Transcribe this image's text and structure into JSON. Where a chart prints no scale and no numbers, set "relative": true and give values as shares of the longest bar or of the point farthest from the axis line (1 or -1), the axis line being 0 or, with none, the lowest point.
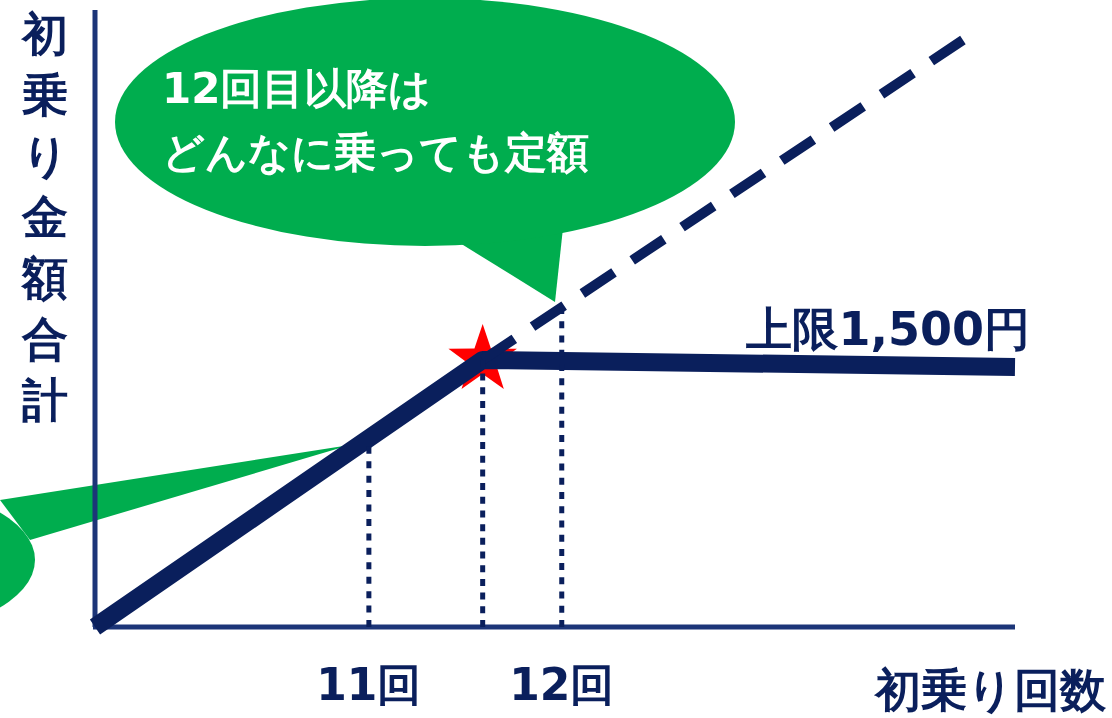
{
  "chart_data": {
    "type": "line",
    "relative": true,
    "xlabel": "初乗り回数",
    "ylabel": "初乗り金額合計",
    "xlim": [
      9.58,
      14.35
    ],
    "xticks": [
      {
        "value": 11,
        "label": "11回"
      },
      {
        "value": 12,
        "label": "12回"
      }
    ],
    "grid": false,
    "series": [
      {
        "color": "#0a1f5c",
        "x": [
          9.58,
          11.59,
          14.35
        ],
        "values": [
          0,
          0.455,
          0.443
        ],
        "line_style": "solid"
      },
      {
        "color": "#0a1f5c",
        "x": [
          11.59,
          14.08
        ],
        "values": [
          0.455,
          1
        ],
        "line_style": "dashed"
      },
      {
        "color": "#0a1f5c",
        "x": [
          11,
          11
        ],
        "values": [
          0,
          0.307
        ],
        "line_style": "dotted"
      },
      {
        "color": "#0a1f5c",
        "x": [
          11.59,
          11.59
        ],
        "values": [
          0,
          0.455
        ],
        "line_style": "dotted"
      },
      {
        "color": "#0a1f5c",
        "x": [
          12,
          12
        ],
        "values": [
          0,
          0.545
        ],
        "line_style": "dotted"
      },
      {
        "type": "scatter",
        "color": "#ff0000",
        "marker": "star",
        "x": [
          11.59
        ],
        "values": [
          0.455
        ]
      }
    ],
    "annotations": [
      {
        "text": "上限1,500円",
        "x": 14.35,
        "y": 0.443
      },
      "12回目以降は",
      "どんなに乗っても定額"
    ]
  }
}
